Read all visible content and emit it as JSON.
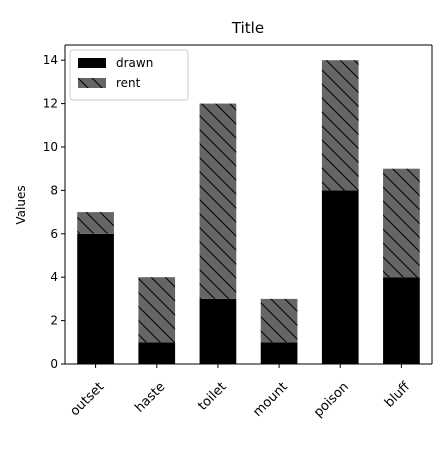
{
  "chart_data": {
    "type": "bar",
    "stacked": true,
    "title": "Title",
    "xlabel": "",
    "ylabel": "Values",
    "categories": [
      "outset",
      "haste",
      "toilet",
      "mount",
      "poison",
      "bluff"
    ],
    "series": [
      {
        "name": "drawn",
        "values": [
          6,
          1,
          3,
          1,
          8,
          4
        ],
        "color": "#000000",
        "hatch": false
      },
      {
        "name": "rent",
        "values": [
          1,
          3,
          9,
          2,
          6,
          5
        ],
        "color": "#666666",
        "hatch": true
      }
    ],
    "ylim": [
      0,
      14.7
    ],
    "yticks": [
      0,
      2,
      4,
      6,
      8,
      10,
      12,
      14
    ],
    "grid": false,
    "legend_position": "top-left",
    "category_label_rotation": -45
  }
}
